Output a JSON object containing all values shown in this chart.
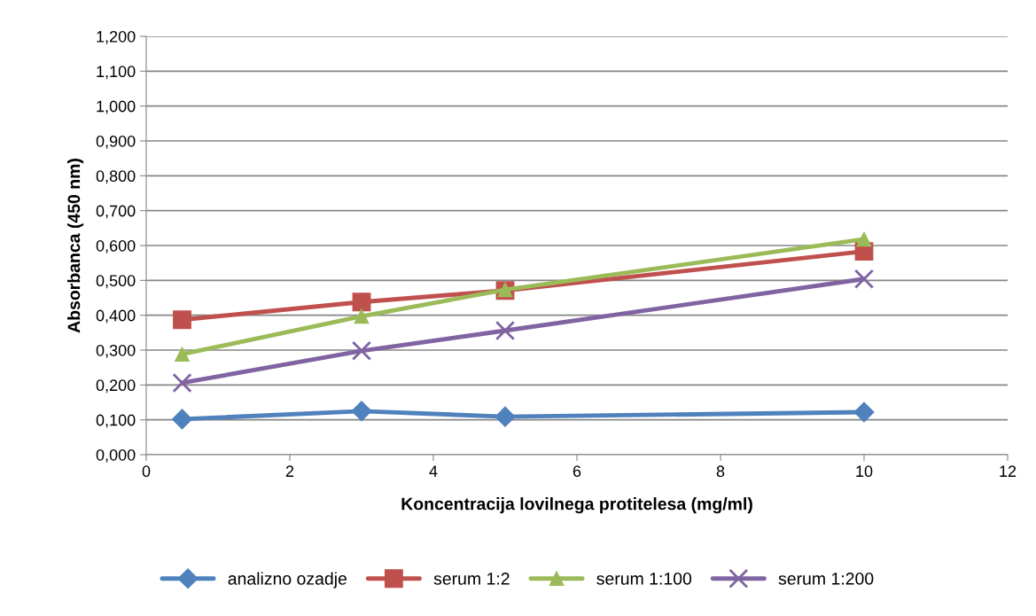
{
  "chart_data": {
    "type": "line",
    "xlabel": "Koncentracija lovilnega protitelesa (mg/ml)",
    "ylabel": "Absorbanca (450 nm)",
    "x": [
      0.5,
      3,
      5,
      10
    ],
    "series": [
      {
        "name": "analizno ozadje",
        "color": "#4f81bd",
        "marker": "diamond",
        "values": [
          0.102,
          0.125,
          0.109,
          0.122
        ]
      },
      {
        "name": "serum 1:2",
        "color": "#c0504d",
        "marker": "square",
        "values": [
          0.387,
          0.438,
          0.471,
          0.583
        ]
      },
      {
        "name": "serum 1:100",
        "color": "#9bbb59",
        "marker": "triangle",
        "values": [
          0.288,
          0.397,
          0.473,
          0.618
        ]
      },
      {
        "name": "serum 1:200",
        "color": "#8064a2",
        "marker": "cross",
        "values": [
          0.206,
          0.298,
          0.356,
          0.504
        ]
      }
    ],
    "xlim": [
      0,
      12
    ],
    "xticks": [
      0,
      2,
      4,
      6,
      8,
      10,
      12
    ],
    "ylim": [
      0,
      1.2
    ],
    "yticks": [
      {
        "value": 0,
        "label": "0,000"
      },
      {
        "value": 0.1,
        "label": "0,100"
      },
      {
        "value": 0.2,
        "label": "0,200"
      },
      {
        "value": 0.3,
        "label": "0,300"
      },
      {
        "value": 0.4,
        "label": "0,400"
      },
      {
        "value": 0.5,
        "label": "0,500"
      },
      {
        "value": 0.6,
        "label": "0,600"
      },
      {
        "value": 0.7,
        "label": "0,700"
      },
      {
        "value": 0.8,
        "label": "0,800"
      },
      {
        "value": 0.9,
        "label": "0,900"
      },
      {
        "value": 1.0,
        "label": "1,000"
      },
      {
        "value": 1.1,
        "label": "1,100"
      },
      {
        "value": 1.2,
        "label": "1,200"
      }
    ],
    "grid": "y",
    "legend": "bottom",
    "line_style": "solid"
  }
}
